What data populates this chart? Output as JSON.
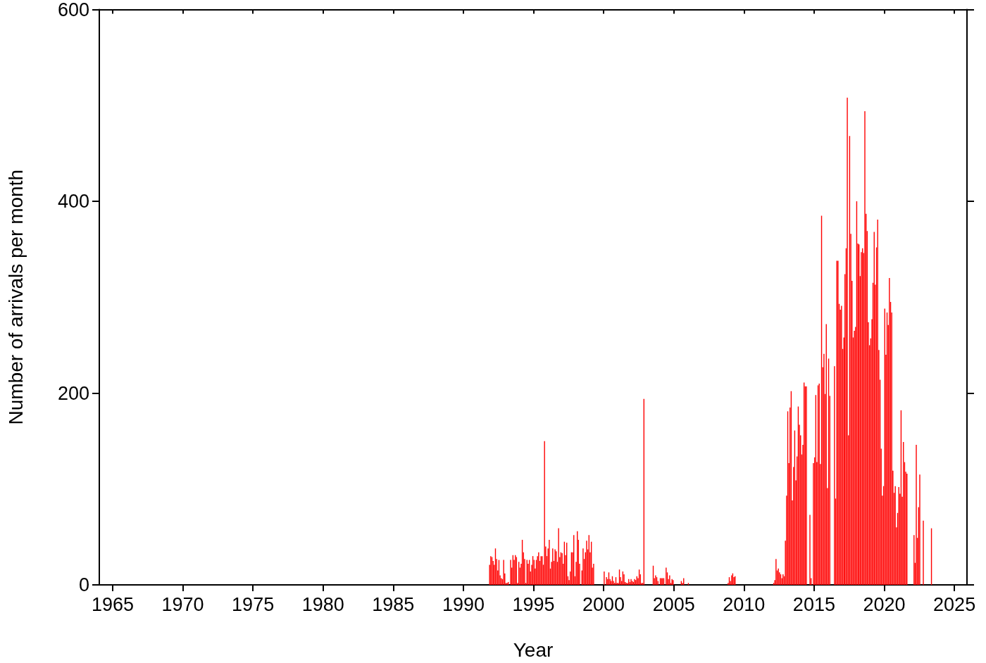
{
  "chart_data": {
    "type": "bar",
    "xlabel": "Year",
    "ylabel": "Number of arrivals per month",
    "color": "#ff0000",
    "xlim": [
      "1964-01-19",
      "2025-11-25"
    ],
    "xticks": [
      "1965",
      "1970",
      "1975",
      "1980",
      "1985",
      "1990",
      "1995",
      "2000",
      "2005",
      "2010",
      "2015",
      "2020",
      "2025"
    ],
    "ylim": [
      0,
      600
    ],
    "yticks": [
      0,
      200,
      400,
      600
    ],
    "x": [
      "1991-11",
      "1991-12",
      "1992-01",
      "1992-02",
      "1992-03",
      "1992-04",
      "1992-05",
      "1992-06",
      "1992-07",
      "1992-08",
      "1992-09",
      "1992-10",
      "1992-11",
      "1992-12",
      "1993-01",
      "1993-02",
      "1993-03",
      "1993-05",
      "1993-06",
      "1993-07",
      "1993-08",
      "1993-09",
      "1993-10",
      "1993-11",
      "1993-12",
      "1994-01",
      "1994-02",
      "1994-03",
      "1994-04",
      "1994-05",
      "1994-06",
      "1994-07",
      "1994-08",
      "1994-09",
      "1994-10",
      "1994-11",
      "1994-12",
      "1995-01",
      "1995-02",
      "1995-03",
      "1995-04",
      "1995-05",
      "1995-06",
      "1995-07",
      "1995-08",
      "1995-09",
      "1995-10",
      "1995-11",
      "1995-12",
      "1996-01",
      "1996-02",
      "1996-03",
      "1996-04",
      "1996-05",
      "1996-06",
      "1996-07",
      "1996-08",
      "1996-09",
      "1996-10",
      "1996-11",
      "1996-12",
      "1997-01",
      "1997-02",
      "1997-03",
      "1997-04",
      "1997-05",
      "1997-06",
      "1997-07",
      "1997-08",
      "1997-09",
      "1997-10",
      "1997-11",
      "1997-12",
      "1998-01",
      "1998-02",
      "1998-03",
      "1998-04",
      "1998-06",
      "1998-07",
      "1998-08",
      "1998-09",
      "1998-10",
      "1998-11",
      "1998-12",
      "1999-01",
      "1999-02",
      "1999-03",
      "1999-04",
      "2000-01",
      "2000-03",
      "2000-04",
      "2000-05",
      "2000-06",
      "2000-07",
      "2000-08",
      "2000-09",
      "2000-10",
      "2000-11",
      "2000-12",
      "2001-01",
      "2001-02",
      "2001-03",
      "2001-04",
      "2001-05",
      "2001-06",
      "2001-07",
      "2001-08",
      "2001-09",
      "2001-10",
      "2001-11",
      "2001-12",
      "2002-01",
      "2002-02",
      "2002-03",
      "2002-04",
      "2002-05",
      "2002-06",
      "2002-07",
      "2002-08",
      "2002-09",
      "2002-10",
      "2002-11",
      "2003-07",
      "2003-08",
      "2003-09",
      "2003-10",
      "2003-11",
      "2004-01",
      "2004-02",
      "2004-03",
      "2004-04",
      "2004-06",
      "2004-07",
      "2004-08",
      "2004-09",
      "2004-10",
      "2004-11",
      "2004-12",
      "2005-07",
      "2005-08",
      "2005-09",
      "2006-01",
      "2008-11",
      "2008-12",
      "2009-01",
      "2009-02",
      "2009-03",
      "2009-04",
      "2009-05",
      "2012-02",
      "2012-03",
      "2012-04",
      "2012-05",
      "2012-06",
      "2012-07",
      "2012-08",
      "2012-09",
      "2012-10",
      "2012-11",
      "2012-12",
      "2013-01",
      "2013-02",
      "2013-03",
      "2013-04",
      "2013-05",
      "2013-06",
      "2013-07",
      "2013-08",
      "2013-09",
      "2013-10",
      "2013-11",
      "2013-12",
      "2014-01",
      "2014-02",
      "2014-03",
      "2014-04",
      "2014-05",
      "2014-06",
      "2014-09",
      "2014-10",
      "2014-12",
      "2015-01",
      "2015-02",
      "2015-03",
      "2015-04",
      "2015-05",
      "2015-06",
      "2015-07",
      "2015-08",
      "2015-09",
      "2015-10",
      "2015-11",
      "2015-12",
      "2016-01",
      "2016-02",
      "2016-06",
      "2016-07",
      "2016-08",
      "2016-09",
      "2016-10",
      "2016-11",
      "2016-12",
      "2017-01",
      "2017-02",
      "2017-03",
      "2017-04",
      "2017-05",
      "2017-06",
      "2017-07",
      "2017-08",
      "2017-09",
      "2017-10",
      "2017-11",
      "2017-12",
      "2018-01",
      "2018-02",
      "2018-03",
      "2018-04",
      "2018-05",
      "2018-06",
      "2018-07",
      "2018-08",
      "2018-09",
      "2018-10",
      "2018-11",
      "2018-12",
      "2019-01",
      "2019-02",
      "2019-03",
      "2019-04",
      "2019-05",
      "2019-06",
      "2019-07",
      "2019-08",
      "2019-09",
      "2019-10",
      "2019-11",
      "2019-12",
      "2020-01",
      "2020-02",
      "2020-03",
      "2020-04",
      "2020-05",
      "2020-06",
      "2020-07",
      "2020-08",
      "2020-09",
      "2020-10",
      "2020-11",
      "2020-12",
      "2021-01",
      "2021-02",
      "2021-03",
      "2021-04",
      "2021-05",
      "2021-06",
      "2021-07",
      "2021-08",
      "2022-02",
      "2022-03",
      "2022-04",
      "2022-05",
      "2022-06",
      "2022-07",
      "2022-10",
      "2023-05"
    ],
    "values": [
      21,
      30,
      29,
      25,
      21,
      38,
      27,
      15,
      26,
      10,
      7,
      6,
      26,
      12,
      2,
      2,
      3,
      26,
      18,
      31,
      26,
      31,
      29,
      2,
      24,
      18,
      22,
      47,
      34,
      27,
      2,
      26,
      22,
      26,
      14,
      21,
      30,
      26,
      17,
      26,
      30,
      34,
      25,
      30,
      30,
      21,
      150,
      40,
      30,
      38,
      47,
      17,
      24,
      38,
      25,
      37,
      35,
      24,
      59,
      29,
      34,
      33,
      22,
      45,
      31,
      44,
      9,
      5,
      14,
      34,
      34,
      52,
      9,
      24,
      56,
      47,
      22,
      15,
      38,
      27,
      34,
      46,
      37,
      52,
      34,
      45,
      18,
      22,
      14,
      8,
      6,
      13,
      6,
      4,
      9,
      4,
      2,
      8,
      2,
      2,
      16,
      8,
      4,
      14,
      11,
      3,
      2,
      2,
      6,
      3,
      6,
      4,
      3,
      6,
      5,
      9,
      7,
      16,
      11,
      2,
      2,
      194,
      20,
      7,
      10,
      8,
      4,
      7,
      7,
      7,
      7,
      18,
      13,
      6,
      10,
      2,
      6,
      5,
      4,
      2,
      7,
      2,
      2,
      8,
      4,
      10,
      12,
      8,
      9,
      2,
      5,
      27,
      15,
      17,
      13,
      11,
      7,
      11,
      9,
      46,
      93,
      181,
      127,
      185,
      202,
      88,
      123,
      161,
      109,
      134,
      186,
      167,
      156,
      136,
      146,
      211,
      207,
      207,
      73,
      7,
      127,
      133,
      198,
      128,
      208,
      210,
      126,
      385,
      227,
      241,
      199,
      272,
      101,
      236,
      197,
      228,
      90,
      338,
      338,
      293,
      287,
      291,
      246,
      258,
      324,
      351,
      508,
      156,
      468,
      366,
      317,
      258,
      265,
      269,
      400,
      356,
      355,
      322,
      347,
      351,
      346,
      494,
      387,
      369,
      274,
      250,
      257,
      277,
      315,
      368,
      313,
      352,
      381,
      245,
      214,
      142,
      93,
      103,
      288,
      240,
      284,
      271,
      320,
      295,
      284,
      119,
      96,
      103,
      60,
      75,
      102,
      95,
      182,
      92,
      149,
      128,
      118,
      116,
      52,
      23,
      146,
      49,
      81,
      115,
      67,
      59
    ]
  }
}
